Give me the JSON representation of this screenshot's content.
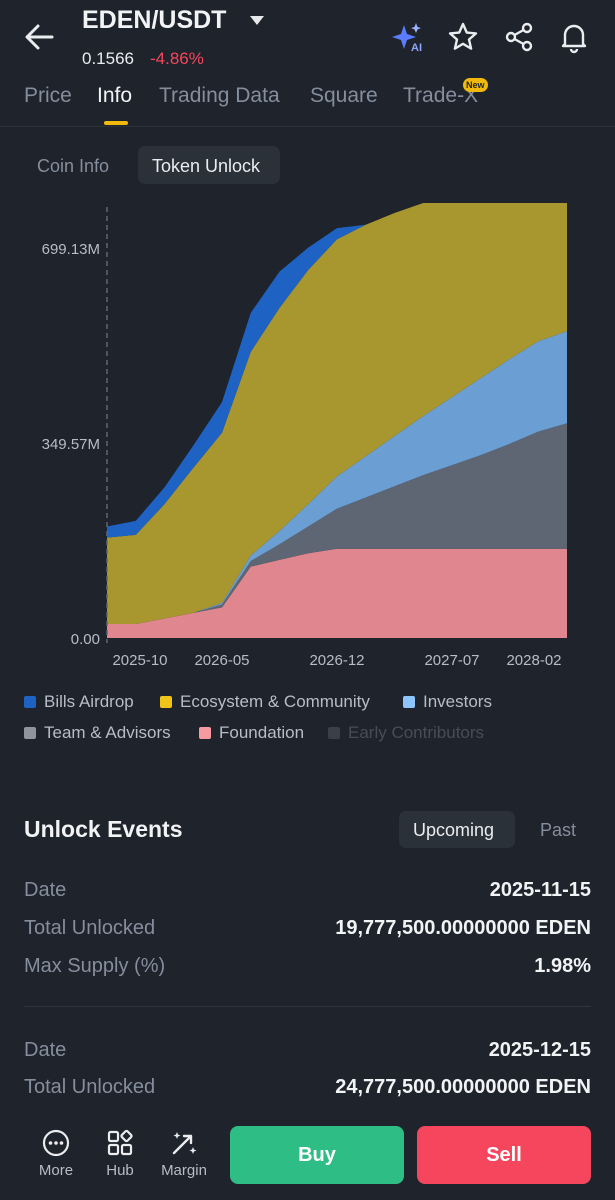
{
  "header": {
    "pair": "EDEN/USDT",
    "price": "0.1566",
    "change": "-4.86%",
    "icons": [
      "back-arrow-icon",
      "ai-sparkle-icon",
      "star-icon",
      "share-icon",
      "bell-icon"
    ]
  },
  "tabs": [
    {
      "label": "Price",
      "active": false
    },
    {
      "label": "Info",
      "active": true
    },
    {
      "label": "Trading Data",
      "active": false
    },
    {
      "label": "Square",
      "active": false
    },
    {
      "label": "Trade-X",
      "active": false,
      "badge": "New"
    }
  ],
  "subtabs": [
    {
      "label": "Coin Info",
      "active": false
    },
    {
      "label": "Token Unlock",
      "active": true
    }
  ],
  "chart_data": {
    "type": "area",
    "stacked": true,
    "y_tick_labels": [
      "699.13M",
      "349.57M",
      "0.00"
    ],
    "y_ticks": [
      699.13,
      349.57,
      0
    ],
    "ylim": [
      0,
      780
    ],
    "x_tick_labels": [
      "2025-10",
      "2026-05",
      "2026-12",
      "2027-07",
      "2028-02"
    ],
    "x": [
      "2025-08",
      "2025-10",
      "2025-12",
      "2026-02",
      "2026-04",
      "2026-06",
      "2026-08",
      "2026-10",
      "2026-12",
      "2027-02",
      "2027-04",
      "2027-06",
      "2027-08",
      "2027-10",
      "2027-12",
      "2028-02",
      "2028-03"
    ],
    "series": [
      {
        "name": "Foundation",
        "color": "#e0868e",
        "values": [
          25,
          25,
          35,
          45,
          55,
          128,
          140,
          152,
          160,
          160,
          160,
          160,
          160,
          160,
          160,
          160,
          160
        ]
      },
      {
        "name": "Team & Advisors",
        "color": "#5e6673",
        "values": [
          0,
          0,
          0,
          0,
          5,
          10,
          28,
          48,
          72,
          92,
          112,
          132,
          150,
          168,
          188,
          210,
          225
        ]
      },
      {
        "name": "Investors",
        "color": "#6b9fd4",
        "values": [
          0,
          0,
          0,
          0,
          3,
          10,
          24,
          40,
          58,
          74,
          90,
          106,
          122,
          138,
          152,
          162,
          165
        ]
      },
      {
        "name": "Ecosystem & Community",
        "color": "#a8962f",
        "values": [
          155,
          160,
          205,
          260,
          305,
          365,
          400,
          420,
          425,
          415,
          400,
          382,
          348,
          314,
          280,
          248,
          230
        ]
      },
      {
        "name": "Bills Airdrop",
        "color": "#1e63c4",
        "values": [
          20,
          25,
          30,
          40,
          55,
          70,
          65,
          40,
          20,
          0,
          0,
          0,
          0,
          0,
          0,
          0,
          0
        ]
      },
      {
        "name": "Early Contributors",
        "color": "#3a3f48",
        "values": [
          0,
          0,
          0,
          0,
          0,
          0,
          0,
          0,
          0,
          0,
          0,
          0,
          0,
          0,
          0,
          0,
          0
        ]
      }
    ],
    "legend": [
      {
        "label": "Bills Airdrop",
        "color": "#1e63c4",
        "active": true
      },
      {
        "label": "Ecosystem & Community",
        "color": "#f0c419",
        "active": true
      },
      {
        "label": "Investors",
        "color": "#8ec5ff",
        "active": true
      },
      {
        "label": "Team & Advisors",
        "color": "#8f959e",
        "active": true
      },
      {
        "label": "Foundation",
        "color": "#f59aa0",
        "active": true
      },
      {
        "label": "Early Contributors",
        "color": "#3a3f48",
        "active": false
      }
    ]
  },
  "events": {
    "title": "Unlock Events",
    "filter_upcoming": "Upcoming",
    "filter_past": "Past",
    "items": [
      {
        "date_label": "Date",
        "date": "2025-11-15",
        "total_label": "Total Unlocked",
        "total": "19,777,500.00000000 EDEN",
        "supply_label": "Max Supply (%)",
        "supply": "1.98%"
      },
      {
        "date_label": "Date",
        "date": "2025-12-15",
        "total_label": "Total Unlocked",
        "total": "24,777,500.00000000 EDEN"
      }
    ]
  },
  "bottom_nav": [
    {
      "label": "More",
      "icon": "more-icon"
    },
    {
      "label": "Hub",
      "icon": "hub-icon"
    },
    {
      "label": "Margin",
      "icon": "margin-icon"
    }
  ],
  "actions": {
    "buy": "Buy",
    "sell": "Sell"
  },
  "colors": {
    "bg": "#1f232b",
    "accent": "#f0b90b",
    "up": "#2ebd85",
    "down": "#f6465d"
  }
}
